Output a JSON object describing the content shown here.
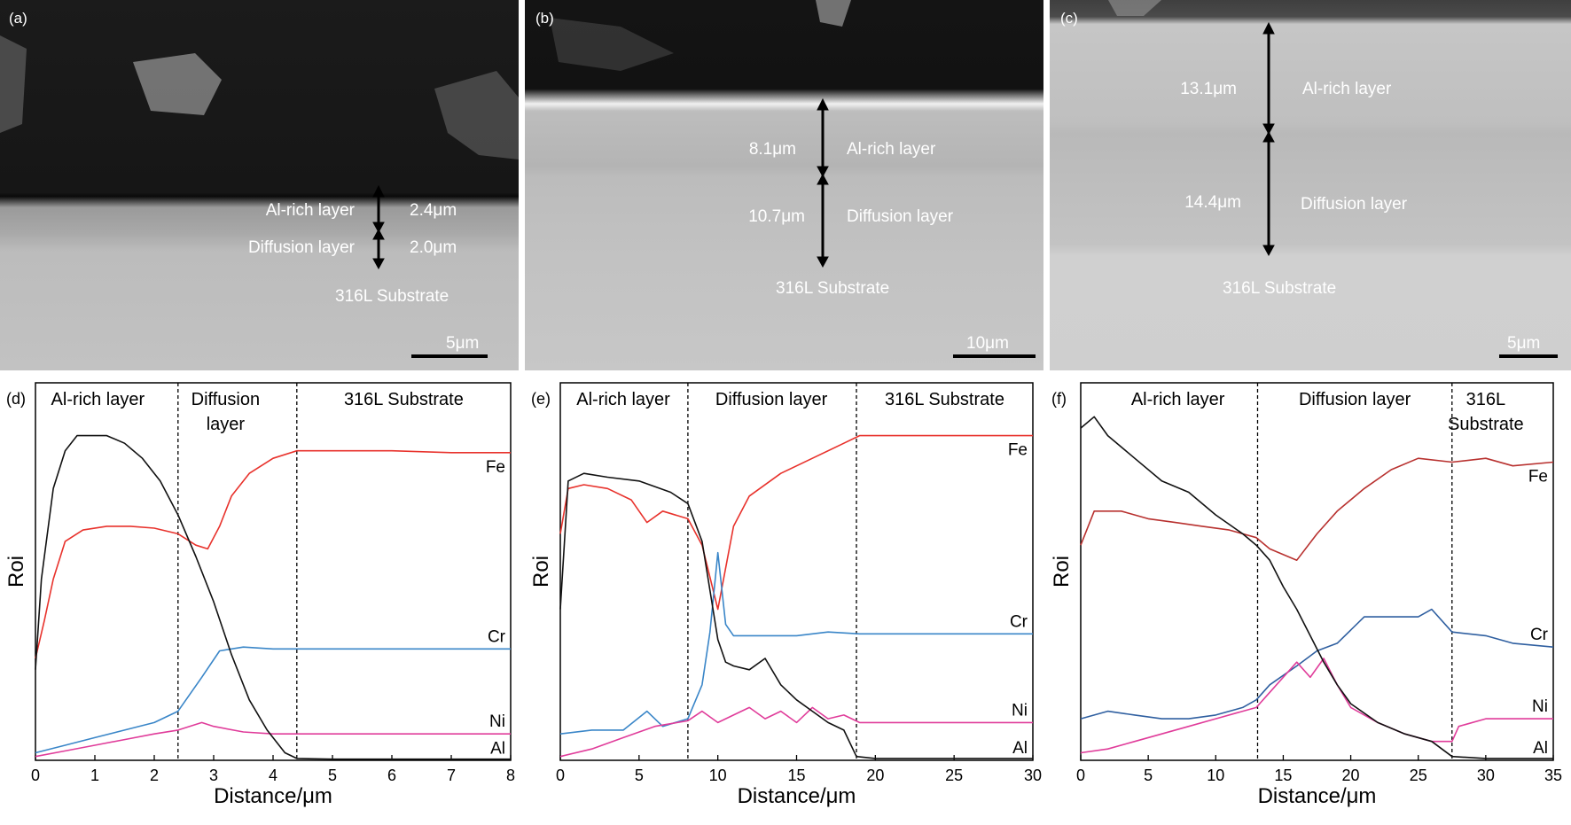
{
  "sem_panels": [
    {
      "letter": "(a)",
      "labels": {
        "al_rich": "Al-rich layer",
        "diffusion": "Diffusion layer",
        "al_rich_thickness": "2.4μm",
        "diffusion_thickness": "2.0μm",
        "substrate": "316L Substrate"
      },
      "scale_bar": "5μm"
    },
    {
      "letter": "(b)",
      "labels": {
        "al_rich": "Al-rich layer",
        "diffusion": "Diffusion layer",
        "al_rich_thickness": "8.1μm",
        "diffusion_thickness": "10.7μm",
        "substrate": "316L Substrate"
      },
      "scale_bar": "10μm"
    },
    {
      "letter": "(c)",
      "labels": {
        "al_rich": "Al-rich layer",
        "diffusion": "Diffusion layer",
        "al_rich_thickness": "13.1μm",
        "diffusion_thickness": "14.4μm",
        "substrate": "316L Substrate"
      },
      "scale_bar": "5μm"
    }
  ],
  "chart_data": [
    {
      "letter": "(d)",
      "type": "line",
      "xlabel": "Distance/μm",
      "ylabel": "Roi",
      "xlim": [
        0,
        8
      ],
      "xticks": [
        0,
        1,
        2,
        3,
        4,
        5,
        6,
        7,
        8
      ],
      "ylim": [
        0,
        100
      ],
      "boundaries": [
        2.4,
        4.4
      ],
      "regions": [
        {
          "lines": [
            "Al-rich layer"
          ],
          "x": 1.05
        },
        {
          "lines": [
            "Diffusion",
            "layer"
          ],
          "x": 3.2
        },
        {
          "lines": [
            "316L Substrate"
          ],
          "x": 6.2
        }
      ],
      "series": [
        {
          "name": "Fe",
          "color": "#e8322c",
          "points": [
            [
              0,
              27
            ],
            [
              0.15,
              37
            ],
            [
              0.3,
              48
            ],
            [
              0.5,
              58
            ],
            [
              0.8,
              61
            ],
            [
              1.2,
              62
            ],
            [
              1.6,
              62
            ],
            [
              2.0,
              61.5
            ],
            [
              2.4,
              60
            ],
            [
              2.7,
              57
            ],
            [
              2.9,
              56
            ],
            [
              3.1,
              62
            ],
            [
              3.3,
              70
            ],
            [
              3.6,
              76
            ],
            [
              4.0,
              80
            ],
            [
              4.4,
              82
            ],
            [
              5,
              82
            ],
            [
              6,
              82
            ],
            [
              7,
              81.5
            ],
            [
              8,
              81.5
            ]
          ]
        },
        {
          "name": "Cr",
          "color": "#3a86c8",
          "points": [
            [
              0,
              2
            ],
            [
              0.5,
              4
            ],
            [
              1,
              6
            ],
            [
              1.5,
              8
            ],
            [
              2.0,
              10
            ],
            [
              2.4,
              13
            ],
            [
              2.8,
              22
            ],
            [
              3.1,
              29
            ],
            [
              3.5,
              30
            ],
            [
              4.0,
              29.5
            ],
            [
              4.4,
              29.5
            ],
            [
              5,
              29.5
            ],
            [
              6,
              29.5
            ],
            [
              7,
              29.5
            ],
            [
              8,
              29.5
            ]
          ]
        },
        {
          "name": "Ni",
          "color": "#e03c9a",
          "points": [
            [
              0,
              1
            ],
            [
              0.5,
              2.5
            ],
            [
              1,
              4
            ],
            [
              1.5,
              5.5
            ],
            [
              2.0,
              7
            ],
            [
              2.4,
              8
            ],
            [
              2.8,
              10
            ],
            [
              3.0,
              9
            ],
            [
              3.5,
              7.5
            ],
            [
              4.0,
              7
            ],
            [
              4.4,
              7
            ],
            [
              5,
              7
            ],
            [
              6,
              7
            ],
            [
              7,
              7
            ],
            [
              8,
              7
            ]
          ]
        },
        {
          "name": "Al",
          "color": "#111111",
          "points": [
            [
              0,
              24
            ],
            [
              0.1,
              48
            ],
            [
              0.3,
              72
            ],
            [
              0.5,
              82
            ],
            [
              0.7,
              86
            ],
            [
              0.9,
              86
            ],
            [
              1.2,
              86
            ],
            [
              1.5,
              84
            ],
            [
              1.8,
              80
            ],
            [
              2.1,
              74
            ],
            [
              2.4,
              65
            ],
            [
              2.7,
              54
            ],
            [
              3.0,
              42
            ],
            [
              3.3,
              28
            ],
            [
              3.6,
              16
            ],
            [
              3.9,
              8
            ],
            [
              4.2,
              2
            ],
            [
              4.4,
              0.5
            ],
            [
              5,
              0.3
            ],
            [
              6,
              0.3
            ],
            [
              7,
              0.3
            ],
            [
              8,
              0.3
            ]
          ]
        }
      ]
    },
    {
      "letter": "(e)",
      "type": "line",
      "xlabel": "Distance/μm",
      "ylabel": "Roi",
      "xlim": [
        0,
        30
      ],
      "xticks": [
        0,
        5,
        10,
        15,
        20,
        25,
        30
      ],
      "ylim": [
        0,
        100
      ],
      "boundaries": [
        8.1,
        18.8
      ],
      "regions": [
        {
          "lines": [
            "Al-rich layer"
          ],
          "x": 4.0
        },
        {
          "lines": [
            "Diffusion layer"
          ],
          "x": 13.4
        },
        {
          "lines": [
            "316L Substrate"
          ],
          "x": 24.4
        }
      ],
      "series": [
        {
          "name": "Fe",
          "color": "#e8322c",
          "points": [
            [
              0,
              60
            ],
            [
              0.5,
              72
            ],
            [
              1.5,
              73
            ],
            [
              3,
              72
            ],
            [
              4.5,
              69
            ],
            [
              5.5,
              63
            ],
            [
              6.5,
              66
            ],
            [
              8.1,
              64
            ],
            [
              9,
              57
            ],
            [
              10,
              40
            ],
            [
              11,
              62
            ],
            [
              12,
              70
            ],
            [
              14,
              76
            ],
            [
              16,
              80
            ],
            [
              18,
              84
            ],
            [
              19,
              86
            ],
            [
              22,
              86
            ],
            [
              26,
              86
            ],
            [
              30,
              86
            ]
          ]
        },
        {
          "name": "Cr",
          "color": "#3a86c8",
          "points": [
            [
              0,
              7
            ],
            [
              2,
              8
            ],
            [
              4,
              8
            ],
            [
              5.5,
              13
            ],
            [
              6.5,
              9
            ],
            [
              8.1,
              11
            ],
            [
              9,
              20
            ],
            [
              9.5,
              34
            ],
            [
              10,
              55
            ],
            [
              10.5,
              36
            ],
            [
              11,
              33
            ],
            [
              13,
              33
            ],
            [
              15,
              33
            ],
            [
              17,
              34
            ],
            [
              19,
              33.5
            ],
            [
              22,
              33.5
            ],
            [
              26,
              33.5
            ],
            [
              30,
              33.5
            ]
          ]
        },
        {
          "name": "Ni",
          "color": "#e03c9a",
          "points": [
            [
              0,
              1
            ],
            [
              2,
              3
            ],
            [
              4,
              6
            ],
            [
              6,
              9
            ],
            [
              8.1,
              10.5
            ],
            [
              9,
              13
            ],
            [
              10,
              10
            ],
            [
              11,
              12
            ],
            [
              12,
              14
            ],
            [
              13,
              11
            ],
            [
              14,
              13
            ],
            [
              15,
              10
            ],
            [
              16,
              14
            ],
            [
              17,
              11
            ],
            [
              18,
              12
            ],
            [
              19,
              10
            ],
            [
              22,
              10
            ],
            [
              26,
              10
            ],
            [
              30,
              10
            ]
          ]
        },
        {
          "name": "Al",
          "color": "#111111",
          "points": [
            [
              0,
              40
            ],
            [
              0.5,
              74
            ],
            [
              1.5,
              76
            ],
            [
              3,
              75
            ],
            [
              5,
              74
            ],
            [
              7,
              71
            ],
            [
              8.1,
              68
            ],
            [
              9,
              58
            ],
            [
              9.5,
              45
            ],
            [
              10,
              32
            ],
            [
              10.5,
              26
            ],
            [
              11,
              25
            ],
            [
              12,
              24
            ],
            [
              13,
              27
            ],
            [
              14,
              20
            ],
            [
              15,
              16
            ],
            [
              16,
              13
            ],
            [
              17,
              10
            ],
            [
              18,
              8
            ],
            [
              18.8,
              1
            ],
            [
              20,
              0.5
            ],
            [
              25,
              0.5
            ],
            [
              30,
              0.5
            ]
          ]
        }
      ]
    },
    {
      "letter": "(f)",
      "type": "line",
      "xlabel": "Distance/μm",
      "ylabel": "Roi",
      "xlim": [
        0,
        35
      ],
      "xticks": [
        0,
        5,
        10,
        15,
        20,
        25,
        30,
        35
      ],
      "ylim": [
        0,
        100
      ],
      "boundaries": [
        13.1,
        27.5
      ],
      "regions": [
        {
          "lines": [
            "Al-rich layer"
          ],
          "x": 7.2
        },
        {
          "lines": [
            "Diffusion layer"
          ],
          "x": 20.3
        },
        {
          "lines": [
            "316L",
            "Substrate"
          ],
          "x": 30.0
        }
      ],
      "series": [
        {
          "name": "Fe",
          "color": "#b8312f",
          "points": [
            [
              0,
              57
            ],
            [
              1,
              66
            ],
            [
              3,
              66
            ],
            [
              5,
              64
            ],
            [
              7,
              63
            ],
            [
              9,
              62
            ],
            [
              11,
              61
            ],
            [
              13,
              59
            ],
            [
              14,
              56
            ],
            [
              16,
              53
            ],
            [
              17.5,
              60
            ],
            [
              19,
              66
            ],
            [
              21,
              72
            ],
            [
              23,
              77
            ],
            [
              25,
              80
            ],
            [
              27.5,
              79
            ],
            [
              30,
              80
            ],
            [
              32,
              78
            ],
            [
              35,
              79
            ]
          ]
        },
        {
          "name": "Cr",
          "color": "#2f5fa0",
          "points": [
            [
              0,
              11
            ],
            [
              2,
              13
            ],
            [
              4,
              12
            ],
            [
              6,
              11
            ],
            [
              8,
              11
            ],
            [
              10,
              12
            ],
            [
              12,
              14
            ],
            [
              13,
              16
            ],
            [
              14,
              20
            ],
            [
              16,
              25
            ],
            [
              17.5,
              29
            ],
            [
              19,
              31
            ],
            [
              21,
              38
            ],
            [
              23,
              38
            ],
            [
              25,
              38
            ],
            [
              26,
              40
            ],
            [
              27.5,
              34
            ],
            [
              30,
              33
            ],
            [
              32,
              31
            ],
            [
              35,
              30
            ]
          ]
        },
        {
          "name": "Ni",
          "color": "#e03c9a",
          "points": [
            [
              0,
              2
            ],
            [
              2,
              3
            ],
            [
              4,
              5
            ],
            [
              6,
              7
            ],
            [
              8,
              9
            ],
            [
              10,
              11
            ],
            [
              12,
              13
            ],
            [
              13,
              14
            ],
            [
              14,
              18
            ],
            [
              16,
              26
            ],
            [
              17,
              22
            ],
            [
              18,
              27
            ],
            [
              19,
              20
            ],
            [
              20,
              14
            ],
            [
              22,
              10
            ],
            [
              24,
              7
            ],
            [
              26,
              5
            ],
            [
              27.5,
              5
            ],
            [
              28,
              9
            ],
            [
              30,
              11
            ],
            [
              32,
              11
            ],
            [
              35,
              11
            ]
          ]
        },
        {
          "name": "Al",
          "color": "#111111",
          "points": [
            [
              0,
              88
            ],
            [
              1,
              91
            ],
            [
              2,
              86
            ],
            [
              4,
              80
            ],
            [
              6,
              74
            ],
            [
              8,
              71
            ],
            [
              10,
              65
            ],
            [
              12,
              60
            ],
            [
              13,
              57
            ],
            [
              14,
              53
            ],
            [
              15,
              46
            ],
            [
              16,
              40
            ],
            [
              17,
              33
            ],
            [
              18,
              26
            ],
            [
              19,
              20
            ],
            [
              20,
              15
            ],
            [
              22,
              10
            ],
            [
              24,
              7
            ],
            [
              26,
              5
            ],
            [
              27.5,
              1
            ],
            [
              30,
              0.5
            ],
            [
              35,
              0.5
            ]
          ]
        }
      ]
    }
  ]
}
